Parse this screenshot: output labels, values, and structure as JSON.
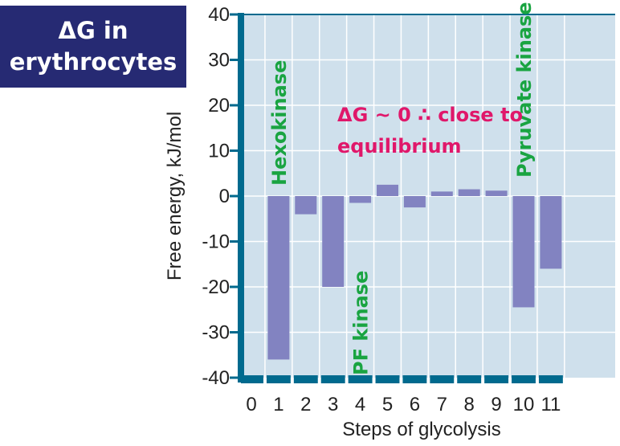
{
  "title_box": {
    "text": "ΔG in\nerythrocytes",
    "bg_color": "#262a73",
    "text_color": "#ffffff"
  },
  "chart_data": {
    "type": "bar",
    "categories": [
      "1",
      "2",
      "3",
      "4",
      "5",
      "6",
      "7",
      "8",
      "9",
      "10",
      "11"
    ],
    "values": [
      -36,
      -4,
      -20,
      -1.5,
      2.5,
      -2.5,
      1,
      1.5,
      1.2,
      -24.5,
      -16
    ],
    "x_ticks": [
      "0",
      "1",
      "2",
      "3",
      "4",
      "5",
      "6",
      "7",
      "8",
      "9",
      "10",
      "11"
    ],
    "y_ticks": [
      40,
      30,
      20,
      10,
      0,
      -10,
      -20,
      -30,
      -40
    ],
    "ylim": [
      -40,
      40
    ],
    "xlabel": "Steps of glycolysis",
    "ylabel": "Free energy, kJ/mol",
    "grid": true,
    "annotations": [
      {
        "text": "Hexokinase",
        "step": 1,
        "color": "#19a441"
      },
      {
        "text": "PF kinase",
        "step": 4,
        "color": "#19a441"
      },
      {
        "text": "Pyruvate kinase",
        "step": 10,
        "color": "#19a441"
      },
      {
        "text": "ΔG ~ 0 ∴ close to",
        "color": "#e0176a"
      },
      {
        "text": "equilibrium",
        "color": "#e0176a"
      }
    ],
    "colors": {
      "bar": "#8283c1",
      "plot_bg": "#cfe0ec",
      "frame": "#006a8e",
      "grid": "#ffffff"
    }
  }
}
